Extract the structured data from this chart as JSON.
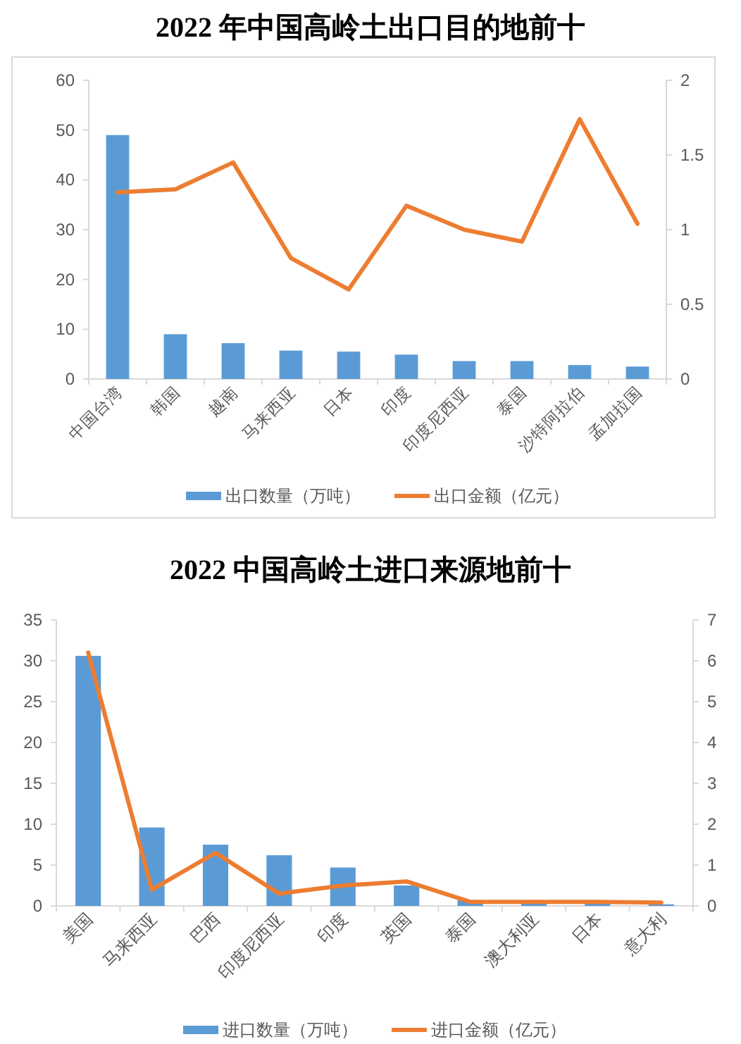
{
  "chart_data": [
    {
      "type": "bar",
      "title": "2022 年中国高岭土出口目的地前十",
      "categories": [
        "中国台湾",
        "韩国",
        "越南",
        "马来西亚",
        "日本",
        "印度",
        "印度尼西亚",
        "泰国",
        "沙特阿拉伯",
        "孟加拉国"
      ],
      "series": [
        {
          "name": "出口数量（万吨）",
          "color": "#5b9bd5",
          "values": [
            49.0,
            9.0,
            7.2,
            5.7,
            5.5,
            4.9,
            3.6,
            3.6,
            2.8,
            2.5
          ]
        },
        {
          "name": "出口金额（亿元）",
          "type": "line",
          "axis": "y2",
          "color": "#ed7d31",
          "values": [
            1.25,
            1.27,
            1.45,
            0.81,
            0.6,
            1.16,
            1.0,
            0.92,
            1.74,
            1.04
          ]
        }
      ],
      "ylim": [
        0,
        60
      ],
      "yticks": [
        0,
        10,
        20,
        30,
        40,
        50,
        60
      ],
      "y2lim": [
        0,
        2
      ],
      "y2ticks": [
        0,
        0.5,
        1,
        1.5,
        2
      ],
      "legend": "bottom"
    },
    {
      "type": "bar",
      "title": "2022 中国高岭土进口来源地前十",
      "categories": [
        "美国",
        "马来西亚",
        "巴西",
        "印度尼西亚",
        "印度",
        "英国",
        "泰国",
        "澳大利亚",
        "日本",
        "意大利"
      ],
      "series": [
        {
          "name": "进口数量（万吨）",
          "color": "#5b9bd5",
          "values": [
            30.6,
            9.6,
            7.5,
            6.2,
            4.7,
            2.5,
            0.7,
            0.5,
            0.5,
            0.2
          ]
        },
        {
          "name": "进口金额（亿元）",
          "type": "line",
          "axis": "y2",
          "color": "#ed7d31",
          "values": [
            6.2,
            0.4,
            1.3,
            0.3,
            0.5,
            0.6,
            0.1,
            0.1,
            0.1,
            0.08
          ]
        }
      ],
      "ylim": [
        0,
        35
      ],
      "yticks": [
        0,
        5,
        10,
        15,
        20,
        25,
        30,
        35
      ],
      "y2lim": [
        0,
        7
      ],
      "y2ticks": [
        0,
        1,
        2,
        3,
        4,
        5,
        6,
        7
      ],
      "legend": "bottom"
    }
  ]
}
